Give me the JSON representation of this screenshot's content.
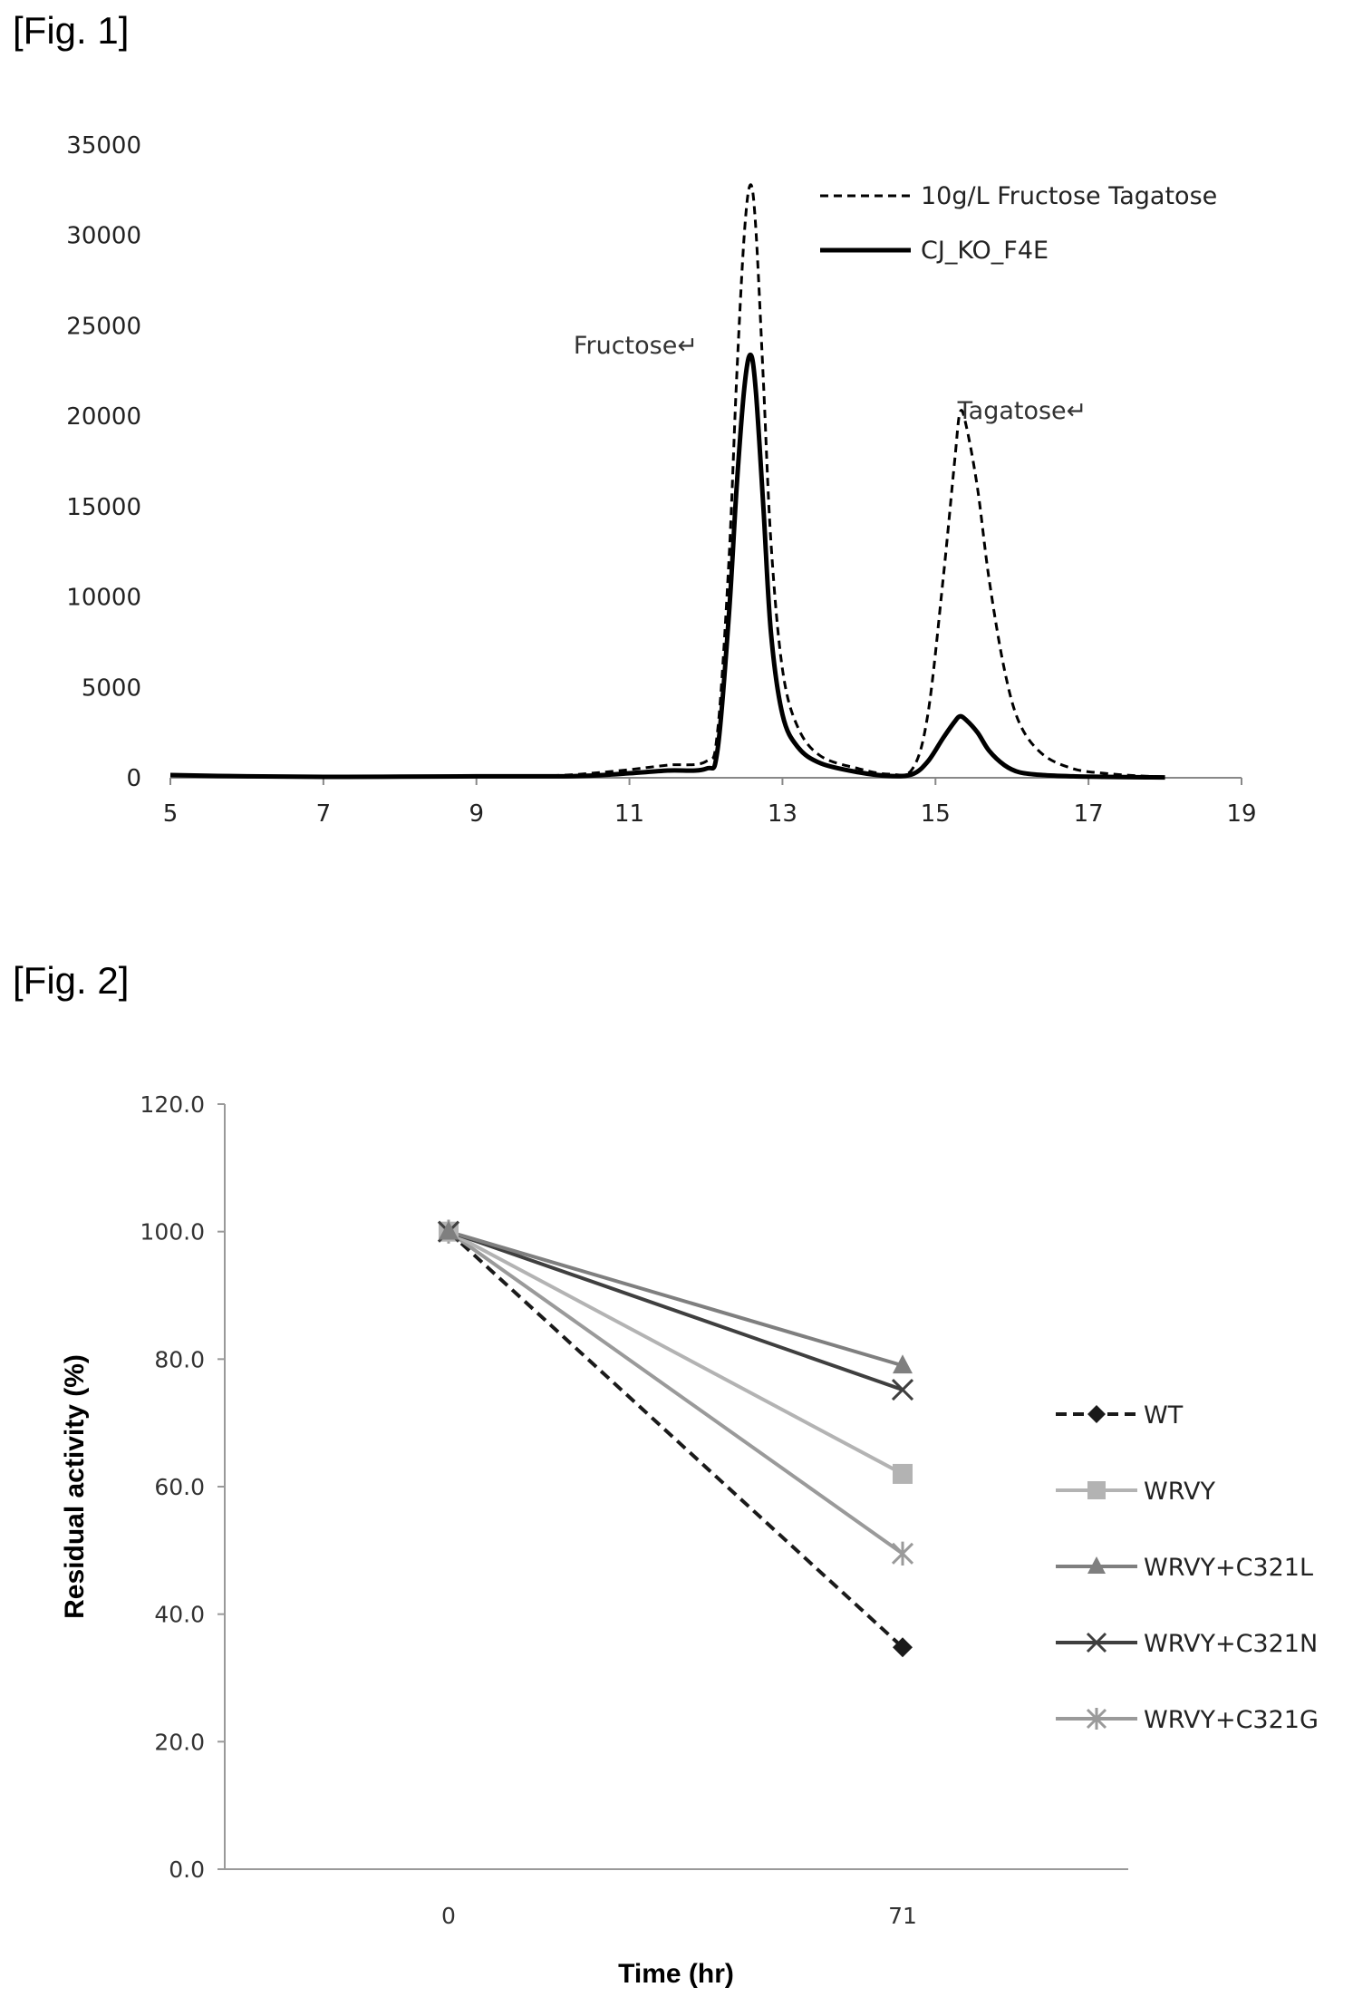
{
  "figures": {
    "fig1_label": "[Fig. 1]",
    "fig2_label": "[Fig. 2]"
  },
  "chart_data": [
    {
      "type": "line",
      "title": "",
      "xlabel": "",
      "ylabel": "",
      "xlim": [
        5,
        19
      ],
      "ylim": [
        0,
        35000
      ],
      "x_ticks": [
        "5",
        "7",
        "9",
        "11",
        "13",
        "15",
        "17",
        "19"
      ],
      "y_ticks": [
        "0",
        "5000",
        "10000",
        "15000",
        "20000",
        "25000",
        "30000",
        "35000"
      ],
      "grid": false,
      "legend_position": "top-right",
      "annotations": [
        {
          "text": "Fructose↵",
          "x": 12.58
        },
        {
          "text": "Tagatose↵",
          "x": 15.32
        }
      ],
      "series": [
        {
          "name": "10g/L Fructose Tagatose",
          "style": "dashed",
          "color": "#000000",
          "x": [
            5,
            6,
            7,
            8,
            9,
            10,
            10.5,
            11,
            11.5,
            12,
            12.15,
            12.3,
            12.4,
            12.5,
            12.58,
            12.65,
            12.75,
            12.85,
            13,
            13.2,
            13.5,
            14,
            14.4,
            14.7,
            14.9,
            15.1,
            15.25,
            15.32,
            15.4,
            15.55,
            15.7,
            15.9,
            16.1,
            16.4,
            16.8,
            17.2,
            17.6,
            18
          ],
          "y": [
            150,
            80,
            60,
            80,
            100,
            120,
            250,
            450,
            700,
            900,
            2500,
            12000,
            22000,
            30000,
            32800,
            30500,
            22000,
            13000,
            6000,
            2800,
            1200,
            500,
            200,
            500,
            3500,
            11000,
            17500,
            20200,
            19500,
            16000,
            11000,
            6000,
            3000,
            1300,
            500,
            250,
            120,
            50
          ]
        },
        {
          "name": "CJ_KO_F4E",
          "style": "solid",
          "color": "#000000",
          "x": [
            5,
            6,
            7,
            8,
            9,
            10,
            10.5,
            11,
            11.5,
            12,
            12.15,
            12.3,
            12.4,
            12.5,
            12.58,
            12.65,
            12.75,
            12.85,
            13,
            13.2,
            13.5,
            14,
            14.4,
            14.7,
            14.9,
            15.1,
            15.25,
            15.32,
            15.4,
            15.55,
            15.7,
            15.9,
            16.1,
            16.4,
            16.8,
            17.2,
            17.6,
            18
          ],
          "y": [
            150,
            80,
            50,
            60,
            80,
            80,
            120,
            250,
            400,
            500,
            1500,
            9000,
            16000,
            21500,
            23400,
            21500,
            15000,
            8000,
            3500,
            1700,
            800,
            300,
            100,
            200,
            900,
            2200,
            3100,
            3400,
            3200,
            2500,
            1500,
            700,
            300,
            150,
            80,
            50,
            30,
            20
          ]
        }
      ]
    },
    {
      "type": "line",
      "title": "",
      "xlabel": "Time (hr)",
      "ylabel": "Residual activity (%)",
      "categories": [
        "0",
        "71"
      ],
      "ylim": [
        0,
        120
      ],
      "y_ticks": [
        "0.0",
        "20.0",
        "40.0",
        "60.0",
        "80.0",
        "100.0",
        "120.0"
      ],
      "grid": false,
      "legend_position": "right",
      "series": [
        {
          "name": "WT",
          "values": [
            100.0,
            34.8
          ],
          "color": "#1a1a1a",
          "marker": "diamond",
          "style": "dashed"
        },
        {
          "name": "WRVY",
          "values": [
            100.0,
            62.0
          ],
          "color": "#b3b3b3",
          "marker": "square",
          "style": "solid"
        },
        {
          "name": "WRVY+C321L",
          "values": [
            100.0,
            79.0
          ],
          "color": "#7f7f7f",
          "marker": "triangle",
          "style": "solid"
        },
        {
          "name": "WRVY+C321N",
          "values": [
            100.0,
            75.2
          ],
          "color": "#3f3f3f",
          "marker": "x",
          "style": "solid"
        },
        {
          "name": "WRVY+C321G",
          "values": [
            100.0,
            49.5
          ],
          "color": "#9a9a9a",
          "marker": "star",
          "style": "solid"
        }
      ]
    }
  ]
}
